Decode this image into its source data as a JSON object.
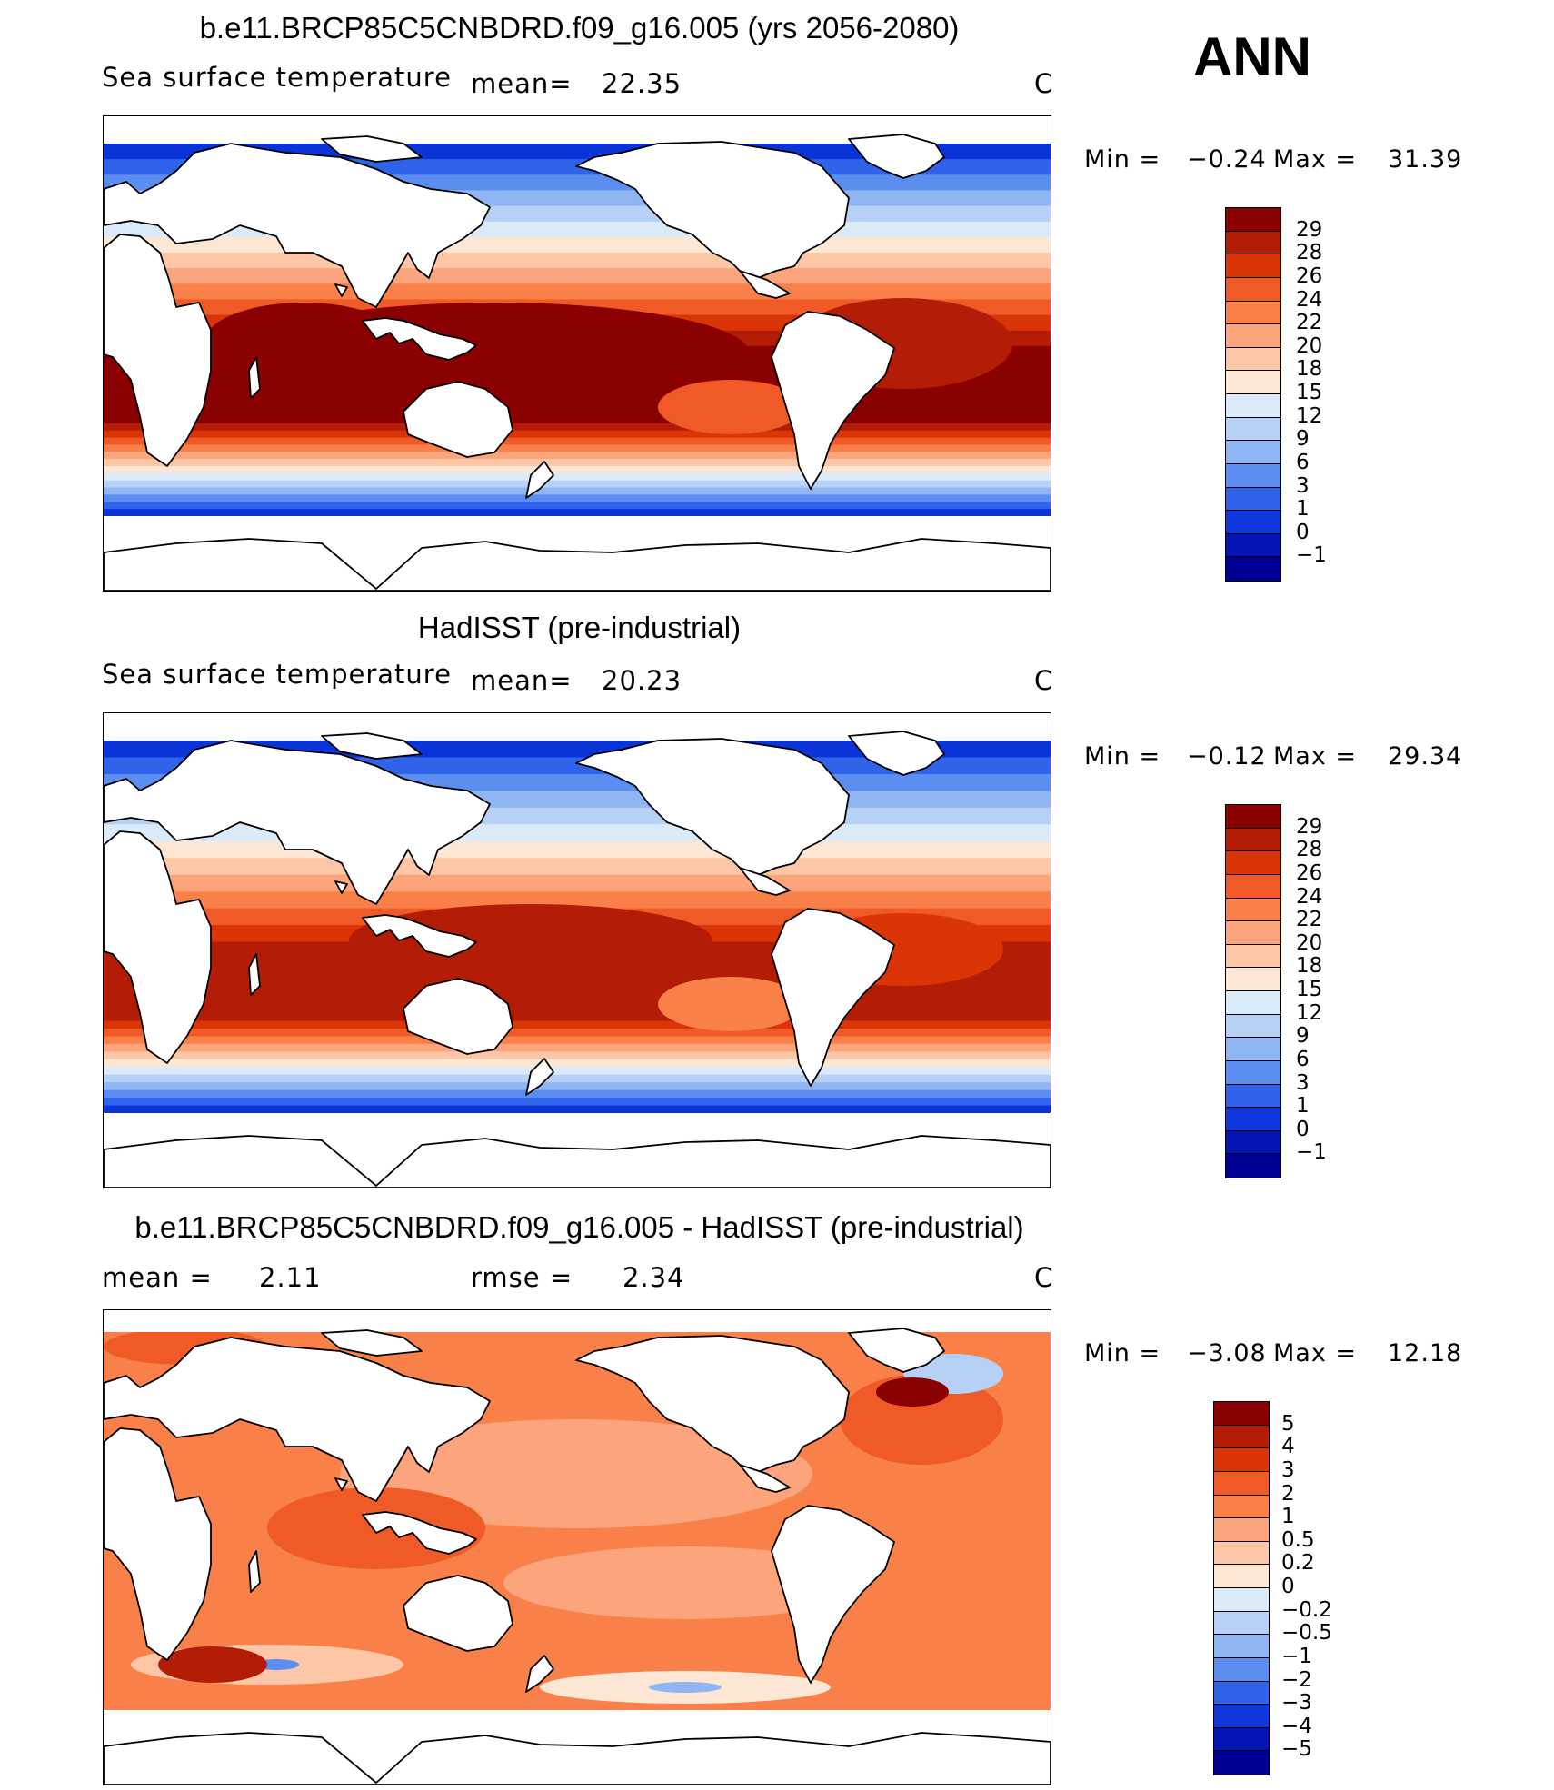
{
  "season": "ANN",
  "panels": [
    {
      "title": "b.e11.BRCP85C5CNBDRD.f09_g16.005 (yrs 2056-2080)",
      "variable": "Sea surface temperature",
      "stat1_label": "mean=",
      "stat1_value": "22.35",
      "stat2_label": "",
      "stat2_value": "",
      "units": "C",
      "min_label": "Min =",
      "min_value": "−0.24",
      "max_label": "Max =",
      "max_value": "31.39",
      "colorbar": [
        "29",
        "28",
        "26",
        "24",
        "22",
        "20",
        "18",
        "15",
        "12",
        "9",
        "6",
        "3",
        "1",
        "0",
        "−1"
      ],
      "colors": [
        "#8b0000",
        "#b41d05",
        "#da3407",
        "#ef5a27",
        "#f98049",
        "#fca47b",
        "#fdc7a7",
        "#fde7d4",
        "#dbeaf8",
        "#b6d1f5",
        "#8fb5f2",
        "#5c8df0",
        "#2f63ea",
        "#1038dd",
        "#0515b5",
        "#000094"
      ]
    },
    {
      "title": "HadISST (pre-industrial)",
      "variable": "Sea surface temperature",
      "stat1_label": "mean=",
      "stat1_value": "20.23",
      "stat2_label": "",
      "stat2_value": "",
      "units": "C",
      "min_label": "Min =",
      "min_value": "−0.12",
      "max_label": "Max =",
      "max_value": "29.34",
      "colorbar": [
        "29",
        "28",
        "26",
        "24",
        "22",
        "20",
        "18",
        "15",
        "12",
        "9",
        "6",
        "3",
        "1",
        "0",
        "−1"
      ],
      "colors": [
        "#8b0000",
        "#b41d05",
        "#da3407",
        "#ef5a27",
        "#f98049",
        "#fca47b",
        "#fdc7a7",
        "#fde7d4",
        "#dbeaf8",
        "#b6d1f5",
        "#8fb5f2",
        "#5c8df0",
        "#2f63ea",
        "#1038dd",
        "#0515b5",
        "#000094"
      ]
    },
    {
      "title": "b.e11.BRCP85C5CNBDRD.f09_g16.005 - HadISST (pre-industrial)",
      "variable": "",
      "stat1_label": "mean =",
      "stat1_value": "2.11",
      "stat2_label": "rmse =",
      "stat2_value": "2.34",
      "units": "C",
      "min_label": "Min =",
      "min_value": "−3.08",
      "max_label": "Max =",
      "max_value": "12.18",
      "colorbar": [
        "5",
        "4",
        "3",
        "2",
        "1",
        "0.5",
        "0.2",
        "0",
        "−0.2",
        "−0.5",
        "−1",
        "−2",
        "−3",
        "−4",
        "−5"
      ],
      "colors": [
        "#8b0000",
        "#b41d05",
        "#da3407",
        "#ef5a27",
        "#f98049",
        "#fca47b",
        "#fdc7a7",
        "#fde7d4",
        "#dbeaf8",
        "#b6d1f5",
        "#8fb5f2",
        "#5c8df0",
        "#2f63ea",
        "#1038dd",
        "#0515b5",
        "#000094"
      ]
    }
  ]
}
